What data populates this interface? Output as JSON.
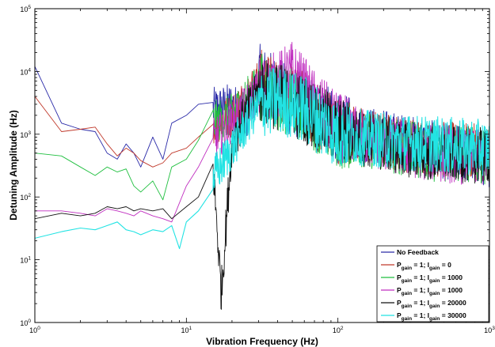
{
  "chart_data": {
    "type": "line",
    "xlabel": "Vibration Frequency (Hz)",
    "ylabel": "Detuning Amplitude (Hz)",
    "xscale": "log",
    "yscale": "log",
    "xlim": [
      1,
      1000
    ],
    "ylim": [
      1,
      100000
    ],
    "x_ticks": [
      {
        "value": 1,
        "base": "10",
        "exp": "0"
      },
      {
        "value": 10,
        "base": "10",
        "exp": "1"
      },
      {
        "value": 100,
        "base": "10",
        "exp": "2"
      },
      {
        "value": 1000,
        "base": "10",
        "exp": "3"
      }
    ],
    "y_ticks": [
      {
        "value": 1,
        "base": "10",
        "exp": "0"
      },
      {
        "value": 10,
        "base": "10",
        "exp": "1"
      },
      {
        "value": 100,
        "base": "10",
        "exp": "2"
      },
      {
        "value": 1000,
        "base": "10",
        "exp": "3"
      },
      {
        "value": 10000,
        "base": "10",
        "exp": "4"
      },
      {
        "value": 100000,
        "base": "10",
        "exp": "5"
      }
    ],
    "grid": false,
    "legend_position": "bottom-right",
    "series": [
      {
        "legend": [
          {
            "t": "No Feedback",
            "s": false
          }
        ],
        "color": "#2a2aa8",
        "anchors": [
          [
            1,
            12000
          ],
          [
            1.5,
            1500
          ],
          [
            2,
            1200
          ],
          [
            2.5,
            1100
          ],
          [
            3,
            500
          ],
          [
            3.5,
            400
          ],
          [
            4,
            700
          ],
          [
            4.5,
            500
          ],
          [
            5,
            300
          ],
          [
            6,
            900
          ],
          [
            7,
            400
          ],
          [
            8,
            1500
          ],
          [
            10,
            2000
          ],
          [
            12,
            3000
          ],
          [
            15,
            2500
          ],
          [
            20,
            3000
          ],
          [
            25,
            2000
          ],
          [
            30,
            8000
          ],
          [
            40,
            5000
          ],
          [
            50,
            3000
          ],
          [
            70,
            2500
          ],
          [
            100,
            1200
          ],
          [
            200,
            900
          ],
          [
            400,
            600
          ],
          [
            1000,
            400
          ]
        ]
      },
      {
        "legend": [
          {
            "t": "P",
            "s": false
          },
          {
            "t": "gain",
            "s": true
          },
          {
            "t": " = 1; I",
            "s": false
          },
          {
            "t": "gain",
            "s": true
          },
          {
            "t": " = 0",
            "s": false
          }
        ],
        "color": "#c0392b",
        "anchors": [
          [
            1,
            4000
          ],
          [
            1.5,
            1100
          ],
          [
            2,
            1200
          ],
          [
            2.5,
            1300
          ],
          [
            3,
            700
          ],
          [
            3.5,
            450
          ],
          [
            4,
            600
          ],
          [
            4.5,
            500
          ],
          [
            5,
            380
          ],
          [
            6,
            300
          ],
          [
            7,
            350
          ],
          [
            8,
            500
          ],
          [
            10,
            600
          ],
          [
            12,
            900
          ],
          [
            15,
            1500
          ],
          [
            20,
            2000
          ],
          [
            30,
            7000
          ],
          [
            40,
            4500
          ],
          [
            60,
            3000
          ],
          [
            100,
            1200
          ],
          [
            200,
            800
          ],
          [
            400,
            600
          ],
          [
            1000,
            500
          ]
        ]
      },
      {
        "legend": [
          {
            "t": "P",
            "s": false
          },
          {
            "t": "gain",
            "s": true
          },
          {
            "t": " = 1; I",
            "s": false
          },
          {
            "t": "gain",
            "s": true
          },
          {
            "t": " = 1000",
            "s": false
          }
        ],
        "color": "#1fbf3f",
        "anchors": [
          [
            1,
            500
          ],
          [
            1.5,
            450
          ],
          [
            2,
            300
          ],
          [
            2.5,
            220
          ],
          [
            3,
            300
          ],
          [
            3.5,
            250
          ],
          [
            4,
            280
          ],
          [
            4.5,
            150
          ],
          [
            5,
            120
          ],
          [
            6,
            180
          ],
          [
            7,
            90
          ],
          [
            8,
            300
          ],
          [
            10,
            400
          ],
          [
            12,
            800
          ],
          [
            15,
            1500
          ],
          [
            20,
            2000
          ],
          [
            30,
            6000
          ],
          [
            40,
            4000
          ],
          [
            60,
            2500
          ],
          [
            100,
            1000
          ],
          [
            200,
            700
          ],
          [
            400,
            500
          ],
          [
            1000,
            450
          ]
        ]
      },
      {
        "legend": [
          {
            "t": "P",
            "s": false
          },
          {
            "t": "gain",
            "s": true
          },
          {
            "t": " = 1; I",
            "s": false
          },
          {
            "t": "gain",
            "s": true
          },
          {
            "t": " = 1000",
            "s": false
          }
        ],
        "color": "#c02fc0",
        "anchors": [
          [
            1,
            60
          ],
          [
            1.5,
            60
          ],
          [
            2,
            55
          ],
          [
            2.5,
            50
          ],
          [
            3,
            65
          ],
          [
            3.5,
            60
          ],
          [
            4,
            55
          ],
          [
            4.5,
            50
          ],
          [
            5,
            60
          ],
          [
            6,
            50
          ],
          [
            7,
            45
          ],
          [
            8,
            40
          ],
          [
            10,
            150
          ],
          [
            12,
            300
          ],
          [
            15,
            800
          ],
          [
            20,
            1500
          ],
          [
            30,
            5000
          ],
          [
            40,
            6000
          ],
          [
            50,
            9000
          ],
          [
            70,
            3000
          ],
          [
            100,
            1300
          ],
          [
            200,
            700
          ],
          [
            400,
            500
          ],
          [
            1000,
            400
          ]
        ]
      },
      {
        "legend": [
          {
            "t": "P",
            "s": false
          },
          {
            "t": "gain",
            "s": true
          },
          {
            "t": " = 1; I",
            "s": false
          },
          {
            "t": "gain",
            "s": true
          },
          {
            "t": " = 20000",
            "s": false
          }
        ],
        "color": "#111111",
        "anchors": [
          [
            1,
            45
          ],
          [
            1.5,
            55
          ],
          [
            2,
            50
          ],
          [
            2.5,
            55
          ],
          [
            3,
            70
          ],
          [
            3.5,
            65
          ],
          [
            4,
            70
          ],
          [
            4.5,
            60
          ],
          [
            5,
            65
          ],
          [
            6,
            60
          ],
          [
            7,
            65
          ],
          [
            8,
            45
          ],
          [
            10,
            70
          ],
          [
            12,
            100
          ],
          [
            15,
            300
          ],
          [
            17,
            3
          ],
          [
            20,
            800
          ],
          [
            30,
            5000
          ],
          [
            40,
            4000
          ],
          [
            60,
            2500
          ],
          [
            100,
            1100
          ],
          [
            200,
            700
          ],
          [
            400,
            500
          ],
          [
            1000,
            450
          ]
        ]
      },
      {
        "legend": [
          {
            "t": "P",
            "s": false
          },
          {
            "t": "gain",
            "s": true
          },
          {
            "t": " = 1; I",
            "s": false
          },
          {
            "t": "gain",
            "s": true
          },
          {
            "t": " = 30000",
            "s": false
          }
        ],
        "color": "#22e3e3",
        "anchors": [
          [
            1,
            22
          ],
          [
            1.5,
            28
          ],
          [
            2,
            32
          ],
          [
            2.5,
            30
          ],
          [
            3,
            35
          ],
          [
            3.5,
            40
          ],
          [
            4,
            30
          ],
          [
            4.5,
            28
          ],
          [
            5,
            25
          ],
          [
            6,
            30
          ],
          [
            7,
            28
          ],
          [
            8,
            35
          ],
          [
            9,
            15
          ],
          [
            10,
            40
          ],
          [
            12,
            60
          ],
          [
            15,
            200
          ],
          [
            20,
            600
          ],
          [
            30,
            3000
          ],
          [
            40,
            3500
          ],
          [
            60,
            2500
          ],
          [
            100,
            1000
          ],
          [
            200,
            800
          ],
          [
            400,
            700
          ],
          [
            1000,
            600
          ]
        ]
      }
    ]
  }
}
